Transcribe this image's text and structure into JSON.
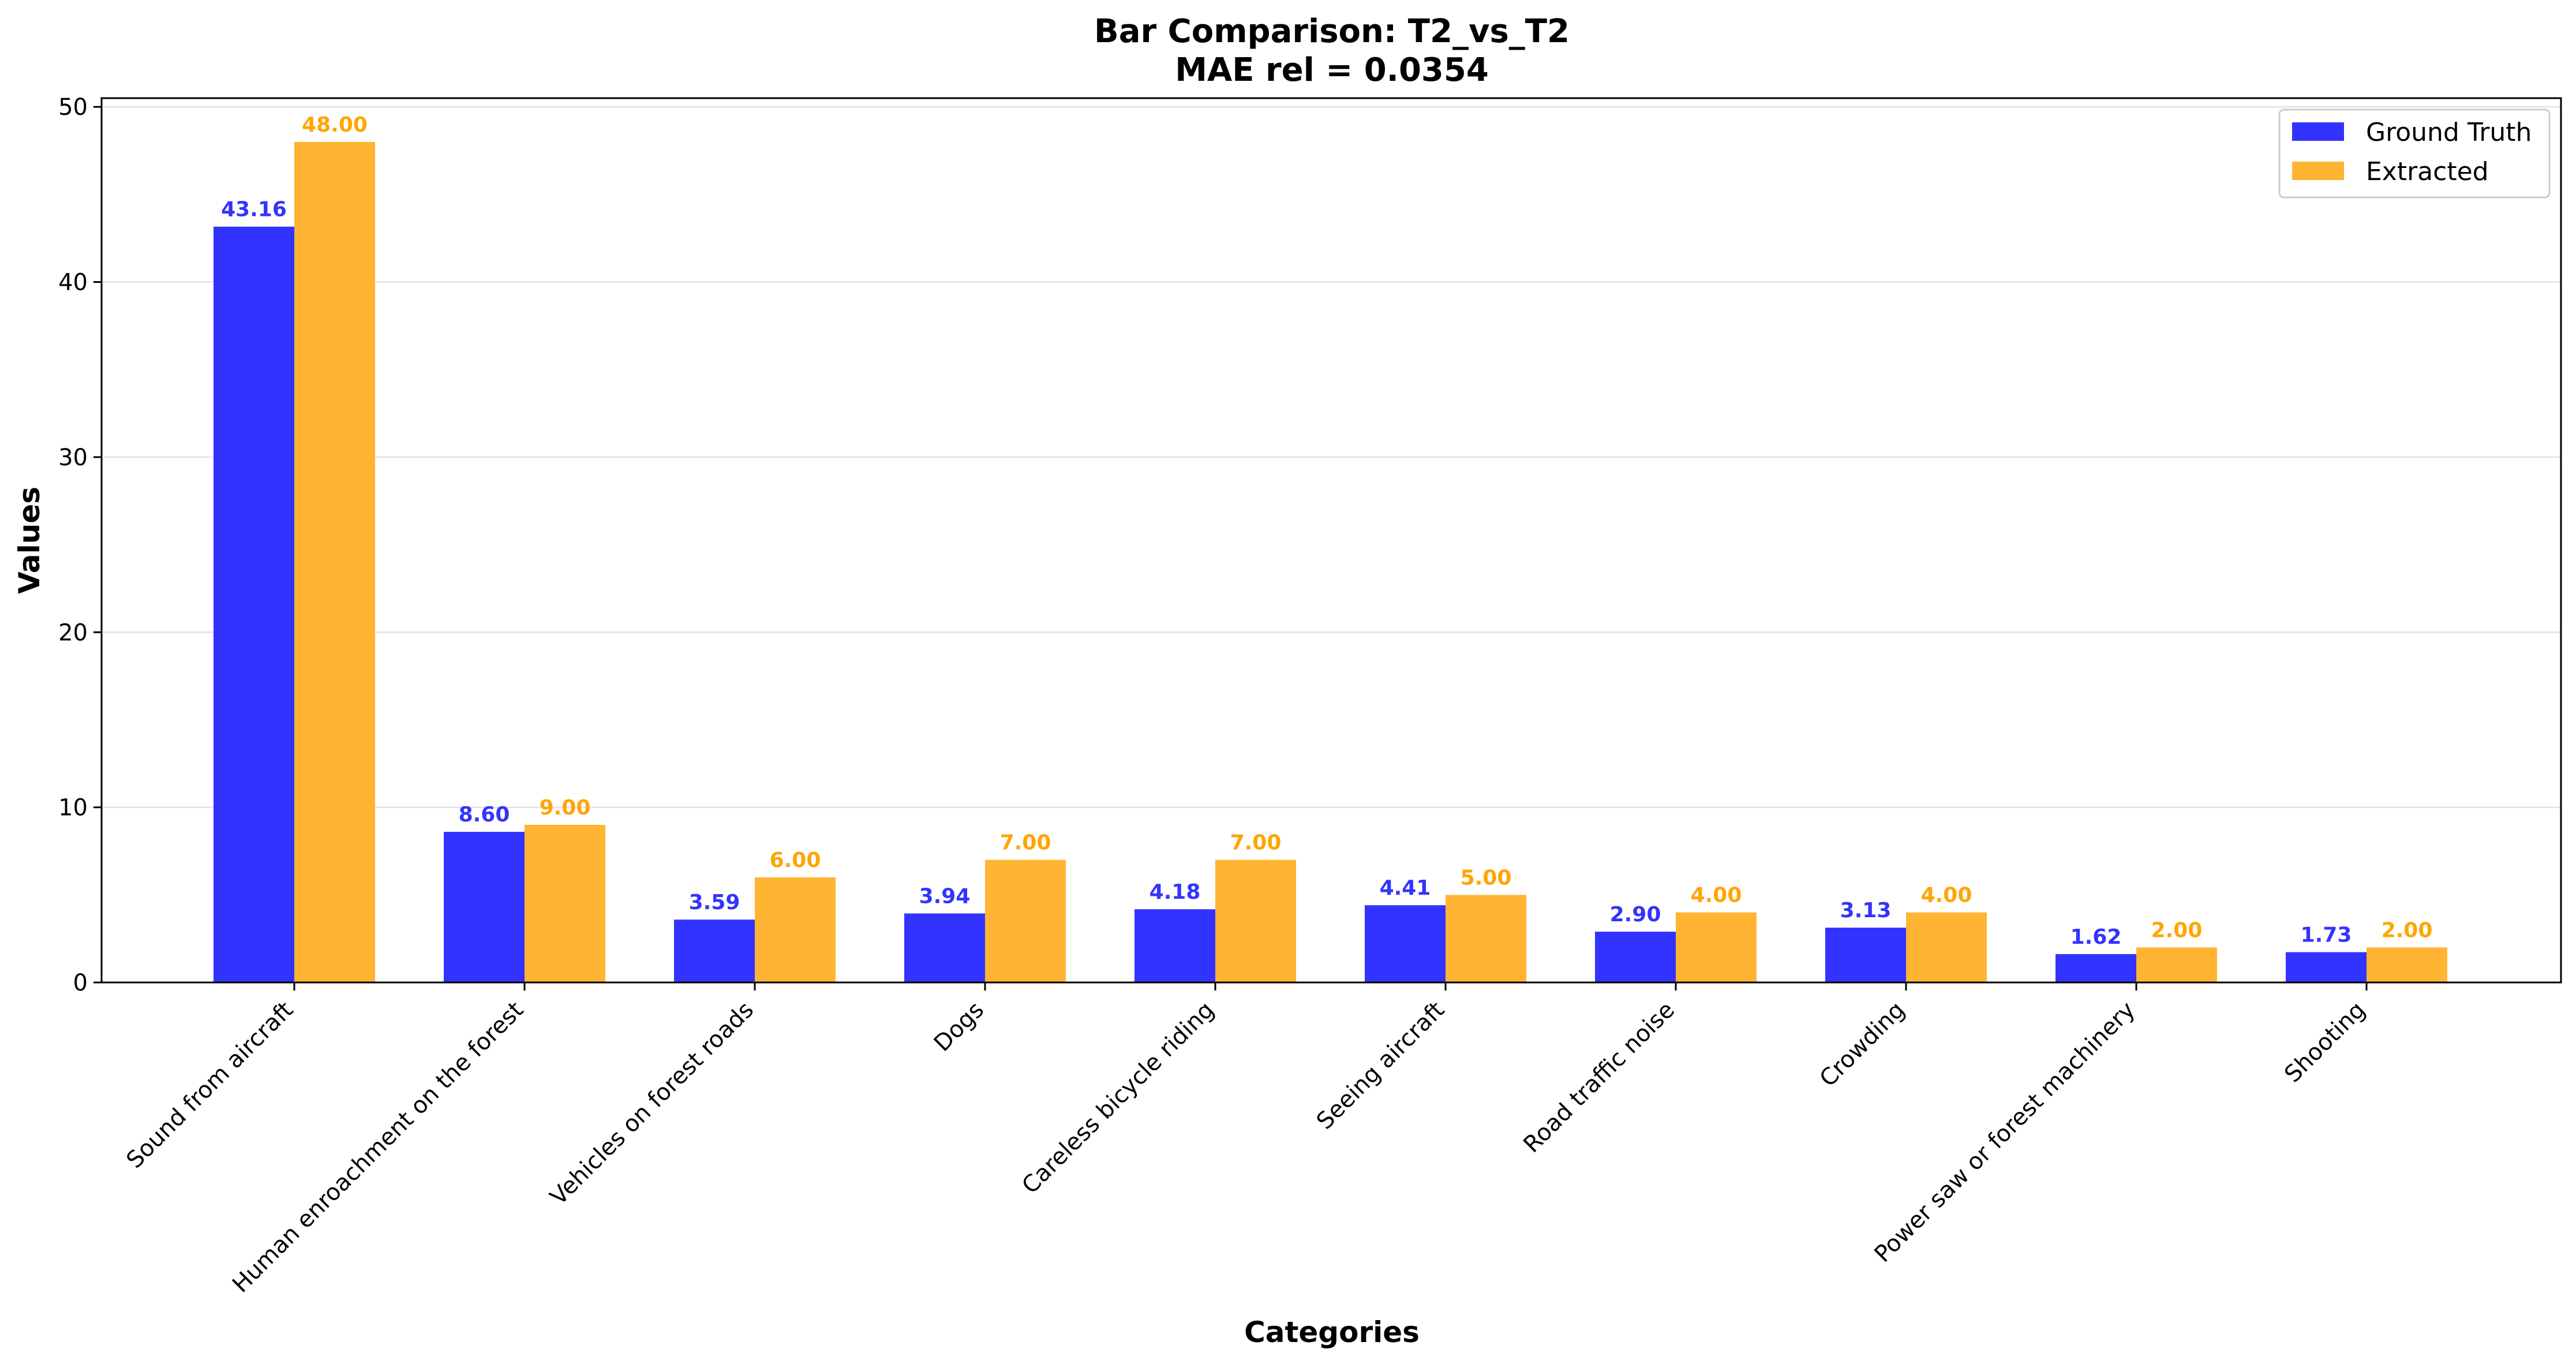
{
  "chart_data": {
    "type": "bar",
    "title_line1": "Bar Comparison: T2_vs_T2",
    "title_line2": "MAE rel = 0.0354",
    "xlabel": "Categories",
    "ylabel": "Values",
    "ylim": [
      0,
      50.5
    ],
    "yticks": [
      0,
      10,
      20,
      30,
      40,
      50
    ],
    "grid": "horizontal",
    "legend_position": "top-right",
    "categories": [
      "Sound from aircraft",
      "Human enroachment on the forest",
      "Vehicles on forest roads",
      "Dogs",
      "Careless bicycle riding",
      "Seeing aircraft",
      "Road traffic noise",
      "Crowding",
      "Power saw or forest machinery",
      "Shooting"
    ],
    "series": [
      {
        "name": "Ground Truth",
        "color": "#3333ff",
        "values": [
          43.16,
          8.6,
          3.59,
          3.94,
          4.18,
          4.41,
          2.9,
          3.13,
          1.62,
          1.73
        ],
        "labels": [
          "43.16",
          "8.60",
          "3.59",
          "3.94",
          "4.18",
          "4.41",
          "2.90",
          "3.13",
          "1.62",
          "1.73"
        ]
      },
      {
        "name": "Extracted",
        "color": "#ffb533",
        "label_color": "#ffa500",
        "values": [
          48,
          9,
          6,
          7,
          7,
          5,
          4,
          4,
          2,
          2
        ],
        "labels": [
          "48.00",
          "9.00",
          "6.00",
          "7.00",
          "7.00",
          "5.00",
          "4.00",
          "4.00",
          "2.00",
          "2.00"
        ]
      }
    ]
  }
}
